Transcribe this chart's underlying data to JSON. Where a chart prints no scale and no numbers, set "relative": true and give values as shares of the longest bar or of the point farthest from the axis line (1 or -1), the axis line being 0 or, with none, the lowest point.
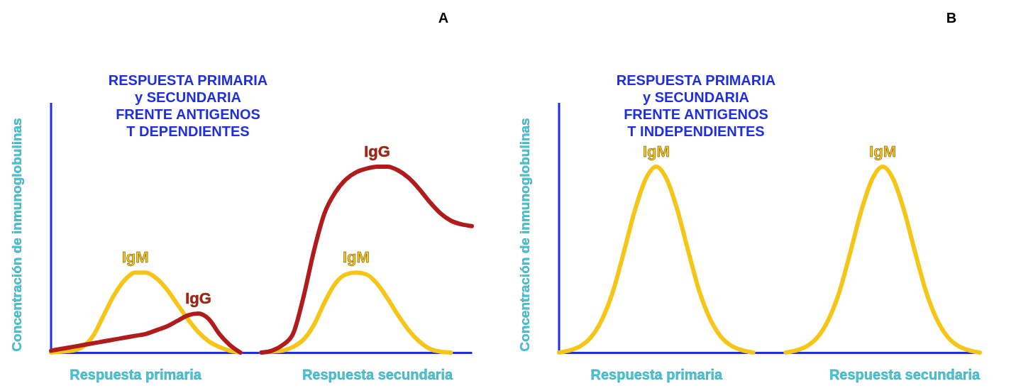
{
  "chart_data": [
    {
      "type": "line",
      "title": "A",
      "ylabel": "Concentración de inmunoglobulinas",
      "relative": true,
      "annotations": [
        "RESPUESTA PRIMARIA\ny SECUNDARIA\nFRENTE ANTIGENOS\nT DEPENDIENTES"
      ],
      "categories": [
        null,
        null,
        null,
        null,
        null,
        null,
        null,
        null,
        "Respuesta primaria",
        null,
        null,
        null,
        null,
        null,
        null,
        null,
        null,
        null,
        null,
        null,
        null,
        null,
        null,
        null,
        null,
        null,
        null,
        null,
        null,
        null,
        null,
        "Respuesta secundaria",
        null,
        null,
        null,
        null,
        null,
        null,
        null,
        null,
        null
      ],
      "series": [
        {
          "name": "IgM",
          "color": "#f5c518",
          "values": [
            0,
            0.005,
            0.01,
            0.03,
            0.09,
            0.2,
            0.31,
            0.39,
            0.43,
            0.43,
            0.4,
            0.34,
            0.26,
            0.18,
            0.11,
            0.06,
            0.03,
            0.01,
            0,
            null,
            0,
            0.005,
            0.01,
            0.03,
            0.07,
            0.15,
            0.27,
            0.37,
            0.42,
            0.43,
            0.42,
            0.37,
            0.29,
            0.2,
            0.12,
            0.06,
            0.02,
            0.005,
            0,
            null,
            null
          ]
        },
        {
          "name": "IgG",
          "color": "#b01c1c",
          "values": [
            0.01,
            0.02,
            0.03,
            0.04,
            0.05,
            0.06,
            0.07,
            0.08,
            0.09,
            0.1,
            0.12,
            0.14,
            0.17,
            0.2,
            0.21,
            0.18,
            0.1,
            0.04,
            0,
            null,
            0,
            0.01,
            0.04,
            0.1,
            0.3,
            0.55,
            0.75,
            0.86,
            0.93,
            0.97,
            0.99,
            1,
            1,
            0.98,
            0.94,
            0.88,
            0.81,
            0.75,
            0.71,
            0.69,
            0.68
          ]
        }
      ]
    },
    {
      "type": "line",
      "title": "B",
      "ylabel": "Concentración de inmunoglobulinas",
      "relative": true,
      "annotations": [
        "RESPUESTA PRIMARIA\ny SECUNDARIA\nFRENTE ANTIGENOS\nT INDEPENDIENTES"
      ],
      "categories": [
        null,
        null,
        null,
        null,
        null,
        null,
        null,
        null,
        null,
        "Respuesta primaria",
        null,
        null,
        null,
        null,
        null,
        null,
        null,
        null,
        null,
        null,
        null,
        null,
        null,
        null,
        null,
        null,
        null,
        null,
        null,
        null,
        null,
        null,
        "Respuesta secundaria",
        null,
        null,
        null,
        null,
        null,
        null,
        null
      ],
      "series": [
        {
          "name": "IgM",
          "color": "#f5c518",
          "values": [
            0,
            0.012,
            0.035,
            0.085,
            0.18,
            0.33,
            0.54,
            0.76,
            0.93,
            1,
            0.93,
            0.76,
            0.54,
            0.33,
            0.18,
            0.085,
            0.035,
            0.012,
            0,
            null,
            null,
            0,
            0.012,
            0.035,
            0.085,
            0.18,
            0.33,
            0.54,
            0.76,
            0.93,
            1,
            0.93,
            0.76,
            0.54,
            0.33,
            0.18,
            0.085,
            0.035,
            0.012,
            0
          ]
        }
      ]
    }
  ]
}
